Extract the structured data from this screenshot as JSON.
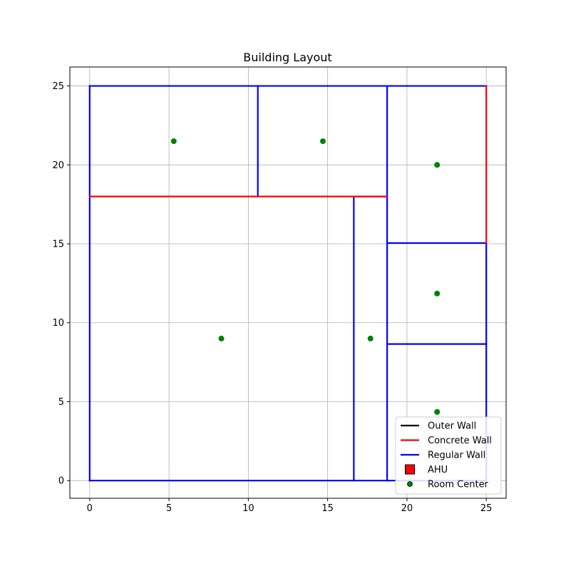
{
  "chart_data": {
    "type": "line",
    "title": "Building Layout",
    "xlabel": "",
    "ylabel": "",
    "xlim": [
      -1.25,
      26.25
    ],
    "ylim": [
      -1.12,
      26.2
    ],
    "xticks": [
      0,
      5,
      10,
      15,
      20,
      25
    ],
    "yticks": [
      0,
      5,
      10,
      15,
      20,
      25
    ],
    "xtick_labels": [
      "0",
      "5",
      "10",
      "15",
      "20",
      "25"
    ],
    "ytick_labels": [
      "0",
      "5",
      "10",
      "15",
      "20",
      "25"
    ],
    "grid": true,
    "legend_position": "lower-right",
    "colors": {
      "outer_wall": "#000000",
      "concrete_wall": "#ff0000",
      "regular_wall": "#0000ff",
      "ahu": "#ff0000",
      "room_center": "#008000",
      "grid": "#b0b0b0"
    },
    "legend": [
      {
        "label": "Outer Wall",
        "kind": "line",
        "color": "#000000"
      },
      {
        "label": "Concrete Wall",
        "kind": "line",
        "color": "#ff0000"
      },
      {
        "label": "Regular Wall",
        "kind": "line",
        "color": "#0000ff"
      },
      {
        "label": "AHU",
        "kind": "square",
        "color": "#ff0000"
      },
      {
        "label": "Room Center",
        "kind": "dot",
        "color": "#008000"
      }
    ],
    "walls": [
      {
        "type": "concrete",
        "x": [
          0,
          18.75
        ],
        "y": [
          18,
          18
        ]
      },
      {
        "type": "concrete",
        "x": [
          25,
          25
        ],
        "y": [
          15.05,
          25
        ]
      },
      {
        "type": "regular",
        "x": [
          0,
          25
        ],
        "y": [
          25,
          25
        ]
      },
      {
        "type": "regular",
        "x": [
          0,
          0
        ],
        "y": [
          0,
          25
        ]
      },
      {
        "type": "regular",
        "x": [
          0,
          25
        ],
        "y": [
          0,
          0
        ]
      },
      {
        "type": "regular",
        "x": [
          25,
          25
        ],
        "y": [
          0,
          15.05
        ]
      },
      {
        "type": "regular",
        "x": [
          10.6,
          10.6
        ],
        "y": [
          18,
          25
        ]
      },
      {
        "type": "regular",
        "x": [
          18.75,
          18.75
        ],
        "y": [
          0,
          25
        ]
      },
      {
        "type": "regular",
        "x": [
          16.65,
          16.65
        ],
        "y": [
          0,
          18
        ]
      },
      {
        "type": "regular",
        "x": [
          16.65,
          18.75
        ],
        "y": [
          18,
          18
        ]
      },
      {
        "type": "regular",
        "x": [
          18.75,
          25
        ],
        "y": [
          15.05,
          15.05
        ]
      },
      {
        "type": "regular",
        "x": [
          18.75,
          25
        ],
        "y": [
          8.65,
          8.65
        ]
      }
    ],
    "room_centers": [
      {
        "x": 5.3,
        "y": 21.5
      },
      {
        "x": 14.7,
        "y": 21.5
      },
      {
        "x": 21.9,
        "y": 20.0
      },
      {
        "x": 21.9,
        "y": 11.85
      },
      {
        "x": 8.3,
        "y": 9.0
      },
      {
        "x": 17.7,
        "y": 9.0
      },
      {
        "x": 21.9,
        "y": 4.35
      }
    ]
  }
}
